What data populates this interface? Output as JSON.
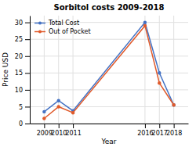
{
  "chart_data": {
    "type": "line",
    "title": "Sorbitol costs 2009-2018",
    "x_label": "Year",
    "y_label": "Price USD",
    "x": [
      2009,
      2010,
      2011,
      2016,
      2017,
      2018
    ],
    "series": [
      {
        "name": "Total Cost",
        "color": "#4472c4",
        "marker": "circle",
        "values": [
          3.5,
          6.8,
          3.8,
          30.0,
          15.0,
          5.5
        ]
      },
      {
        "name": "Out of Pocket",
        "color": "#e05a2b",
        "marker": "circle",
        "values": [
          1.5,
          5.0,
          3.2,
          29.0,
          12.0,
          5.5
        ]
      }
    ],
    "xlim": [
      2008,
      2019
    ],
    "xticks": [
      2009,
      2010,
      2011,
      2016,
      2017,
      2018
    ],
    "ylim": [
      0,
      32
    ],
    "yticks": [
      0,
      5,
      10,
      15,
      20,
      25,
      30
    ],
    "grid": true,
    "legend": "upper-left"
  }
}
